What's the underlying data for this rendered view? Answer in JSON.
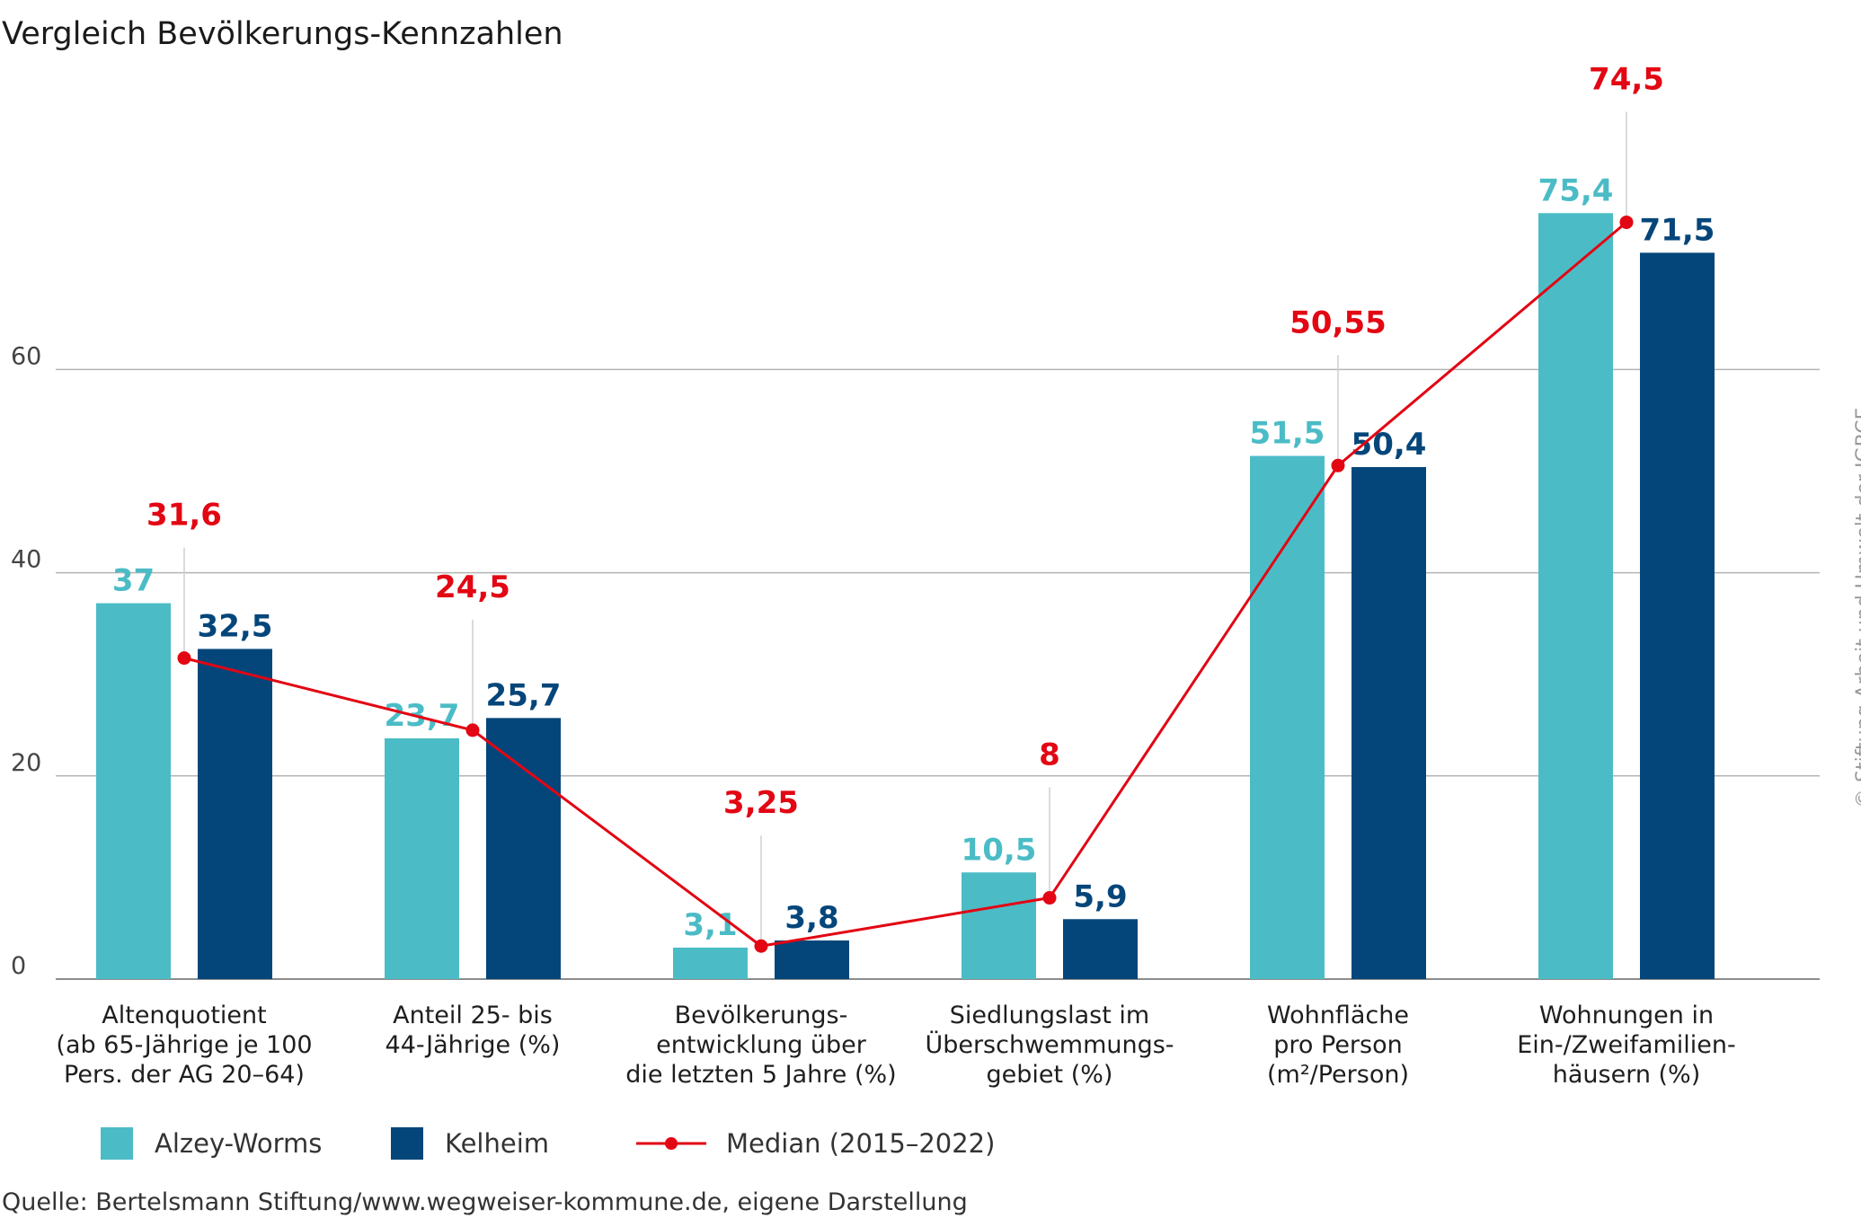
{
  "title": "Vergleich Bevölkerungs-Kennzahlen",
  "source": "Quelle: Bertelsmann Stiftung/www.wegweiser-kommune.de, eigene Darstellung",
  "credit": "© Stiftung Arbeit und Umwelt der IGBCE",
  "chart_data": {
    "type": "bar",
    "ylim": [
      0,
      84
    ],
    "yticks": [
      0,
      20,
      40,
      60
    ],
    "ytick_labels": [
      "0",
      "20",
      "40",
      "60"
    ],
    "grid": true,
    "legend_position": "bottom-left",
    "categories": [
      [
        "Altenquotient",
        "(ab 65-Jährige je 100",
        "Pers. der AG 20–64)"
      ],
      [
        "Anteil 25- bis",
        "44-Jährige (%)"
      ],
      [
        "Bevölkerungs-",
        "entwicklung über",
        "die letzten 5 Jahre (%)"
      ],
      [
        "Siedlungslast im",
        "Überschwemmungs-",
        "gebiet (%)"
      ],
      [
        "Wohnfläche",
        "pro Person",
        "(m²/Person)"
      ],
      [
        "Wohnungen in",
        "Ein-/Zweifamilien-",
        "häusern (%)"
      ]
    ],
    "series": [
      {
        "name": "Alzey-Worms",
        "kind": "bar",
        "color": "#4bbcc6",
        "values": [
          37,
          23.7,
          3.1,
          10.5,
          51.5,
          75.4
        ],
        "labels": [
          "37",
          "23,7",
          "3,1",
          "10,5",
          "51,5",
          "75,4"
        ]
      },
      {
        "name": "Kelheim",
        "kind": "bar",
        "color": "#04467a",
        "values": [
          32.5,
          25.7,
          3.8,
          5.9,
          50.4,
          71.5
        ],
        "labels": [
          "32,5",
          "25,7",
          "3,8",
          "5,9",
          "50,4",
          "71,5"
        ]
      },
      {
        "name": "Median (2015–2022)",
        "kind": "line",
        "color": "#e30613",
        "values": [
          31.6,
          24.5,
          3.25,
          8,
          50.55,
          74.5
        ],
        "labels": [
          "31,6",
          "24,5",
          "3,25",
          "8",
          "50,55",
          "74,5"
        ]
      }
    ]
  }
}
